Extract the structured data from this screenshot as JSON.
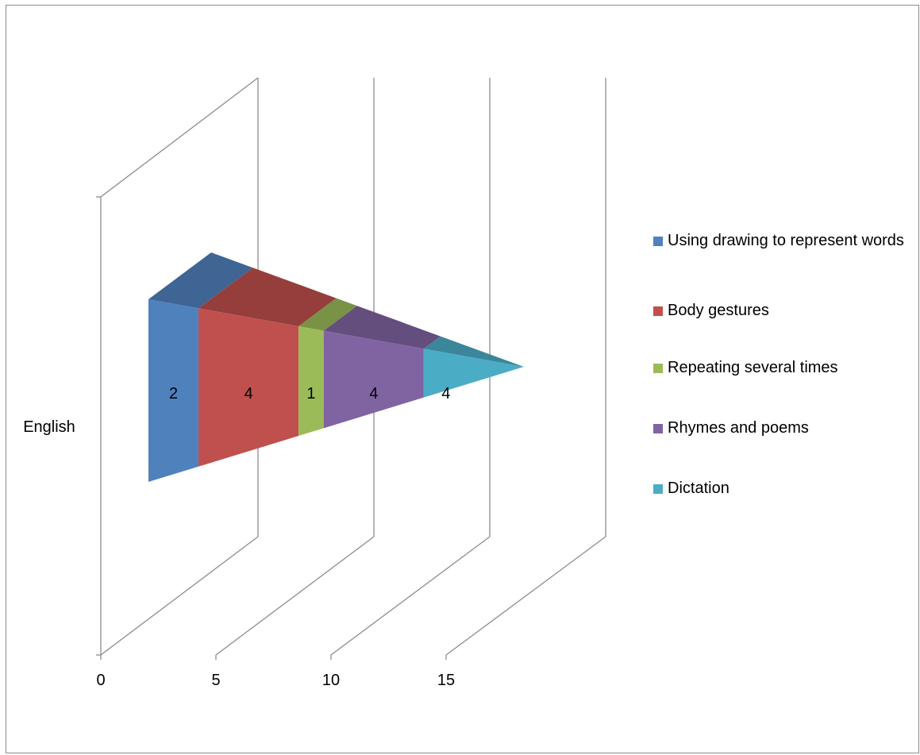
{
  "chart_data": {
    "type": "bar",
    "subtype": "3d-stacked-horizontal-pyramid",
    "categories": [
      "English"
    ],
    "series": [
      {
        "name": "Using drawing to represent words",
        "values": [
          2
        ],
        "color": "#4F81BD"
      },
      {
        "name": "Body gestures",
        "values": [
          4
        ],
        "color": "#C0504D"
      },
      {
        "name": "Repeating several times",
        "values": [
          1
        ],
        "color": "#9BBB59"
      },
      {
        "name": "Rhymes and poems",
        "values": [
          4
        ],
        "color": "#8064A2"
      },
      {
        "name": "Dictation",
        "values": [
          4
        ],
        "color": "#4BACC6"
      }
    ],
    "xlim": [
      0,
      15
    ],
    "x_ticks": [
      "0",
      "5",
      "10",
      "15"
    ],
    "data_labels": [
      "2",
      "4",
      "1",
      "4",
      "4"
    ],
    "gridlines": true,
    "legend_position": "right"
  }
}
